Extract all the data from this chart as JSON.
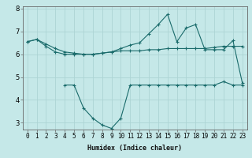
{
  "xlabel": "Humidex (Indice chaleur)",
  "bg_color": "#c5e8e8",
  "grid_color": "#add4d4",
  "line_color": "#1a6b6b",
  "x": [
    0,
    1,
    2,
    3,
    4,
    5,
    6,
    7,
    8,
    9,
    10,
    11,
    12,
    13,
    14,
    15,
    16,
    17,
    18,
    19,
    20,
    21,
    22,
    23
  ],
  "line1": [
    6.55,
    6.65,
    6.45,
    6.25,
    6.1,
    6.05,
    6.0,
    6.0,
    6.05,
    6.1,
    6.15,
    6.15,
    6.15,
    6.2,
    6.2,
    6.25,
    6.25,
    6.25,
    6.25,
    6.25,
    6.3,
    6.35,
    6.35,
    6.35
  ],
  "line2": [
    6.55,
    6.65,
    6.35,
    6.1,
    6.0,
    6.0,
    6.0,
    6.0,
    6.05,
    6.1,
    6.25,
    6.4,
    6.5,
    6.9,
    7.3,
    7.75,
    6.55,
    7.15,
    7.3,
    6.2,
    6.2,
    6.2,
    6.6,
    4.75
  ],
  "line3": [
    null,
    null,
    null,
    null,
    4.65,
    4.65,
    3.65,
    3.2,
    2.9,
    2.75,
    3.2,
    4.65,
    4.65,
    4.65,
    4.65,
    4.65,
    4.65,
    4.65,
    4.65,
    4.65,
    4.65,
    4.8,
    4.65,
    4.65
  ],
  "ylim_min": 2.7,
  "ylim_max": 8.1,
  "xlim_min": -0.5,
  "xlim_max": 23.5,
  "yticks": [
    3,
    4,
    5,
    6,
    7,
    8
  ],
  "xticks": [
    0,
    1,
    2,
    3,
    4,
    5,
    6,
    7,
    8,
    9,
    10,
    11,
    12,
    13,
    14,
    15,
    16,
    17,
    18,
    19,
    20,
    21,
    22,
    23
  ],
  "xlabel_fontsize": 6.0,
  "tick_fontsize": 5.5,
  "ytick_fontsize": 6.0
}
